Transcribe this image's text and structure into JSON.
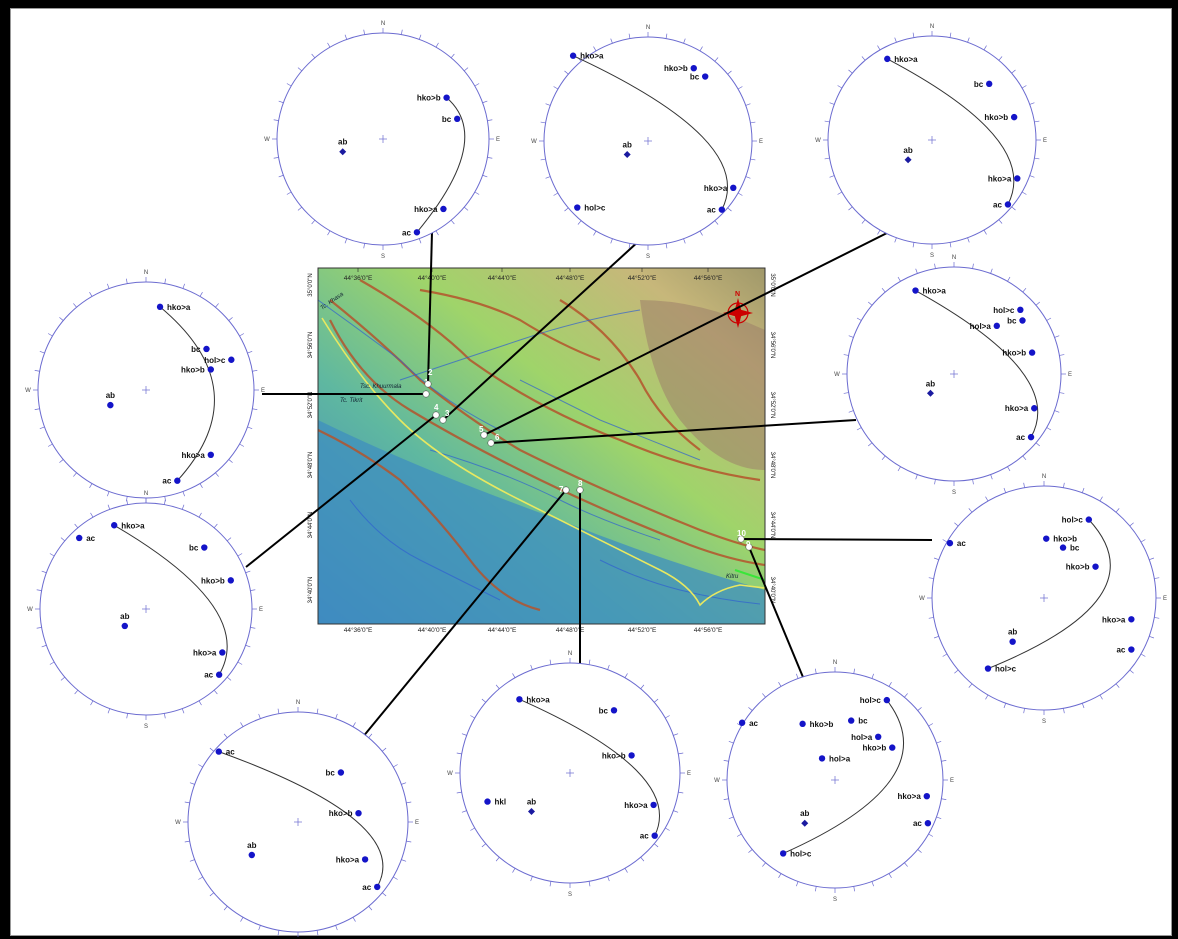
{
  "map": {
    "top_lon_labels": [
      "44°36'0\"E",
      "44°40'0\"E",
      "44°44'0\"E",
      "44°48'0\"E",
      "44°52'0\"E",
      "44°56'0\"E"
    ],
    "bottom_lon_labels": [
      "44°36'0\"E",
      "44°40'0\"E",
      "44°44'0\"E",
      "44°48'0\"E",
      "44°52'0\"E",
      "44°56'0\"E"
    ],
    "left_lat_labels": [
      "35°0'0\"N",
      "34°56'0\"N",
      "34°52'0\"N",
      "34°48'0\"N",
      "34°44'0\"N",
      "34°40'0\"N"
    ],
    "right_lat_labels": [
      "35°0'0\"N",
      "34°56'0\"N",
      "34°52'0\"N",
      "34°48'0\"N",
      "34°44'0\"N",
      "34°40'0\"N"
    ],
    "river_labels": [
      "Tc. Khasa",
      "Tsc. Khuurmala",
      "Tc. Tikrit",
      "Kirkuk",
      "Kitru"
    ],
    "site_labels": [
      "1",
      "2",
      "3",
      "4",
      "5",
      "6",
      "7",
      "8",
      "9",
      "10"
    ],
    "north_arrow_label": "N",
    "colors": {
      "water_low": "#3f7fc4",
      "plain": "#5fb8a0",
      "upland": "#9fd46a",
      "hill": "#c7b77a",
      "contour": "#b4532c",
      "rivers": "#2f5fd0",
      "boundary": "#e8e860",
      "frame_line": "#000000"
    }
  },
  "compass": {
    "N": "N",
    "S": "S",
    "E": "E",
    "W": "W"
  },
  "stereonets": [
    {
      "id": "net-1",
      "points": [
        {
          "label": "ab",
          "type": "diamond"
        },
        {
          "label": "hko>b"
        },
        {
          "label": "bc"
        },
        {
          "label": "hko>a"
        },
        {
          "label": "ac"
        }
      ]
    },
    {
      "id": "net-2",
      "points": [
        {
          "label": "hko>a"
        },
        {
          "label": "hko>b"
        },
        {
          "label": "bc"
        },
        {
          "label": "ab",
          "type": "diamond"
        },
        {
          "label": "hko>a"
        },
        {
          "label": "hol>c"
        },
        {
          "label": "ac"
        }
      ]
    },
    {
      "id": "net-3",
      "points": [
        {
          "label": "hko>a"
        },
        {
          "label": "bc"
        },
        {
          "label": "ab",
          "type": "diamond"
        },
        {
          "label": "hko>b"
        },
        {
          "label": "hko>a"
        },
        {
          "label": "ac"
        }
      ]
    },
    {
      "id": "net-4",
      "points": [
        {
          "label": "hko>a"
        },
        {
          "label": "bc"
        },
        {
          "label": "hol>c"
        },
        {
          "label": "hko>b"
        },
        {
          "label": "ab"
        },
        {
          "label": "hko>a"
        },
        {
          "label": "ac"
        }
      ]
    },
    {
      "id": "net-5",
      "points": [
        {
          "label": "hko>a"
        },
        {
          "label": "hol>c"
        },
        {
          "label": "bc"
        },
        {
          "label": "hol>a"
        },
        {
          "label": "hko>b"
        },
        {
          "label": "ab",
          "type": "diamond"
        },
        {
          "label": "hko>a"
        },
        {
          "label": "ac"
        }
      ]
    },
    {
      "id": "net-6",
      "points": [
        {
          "label": "ac"
        },
        {
          "label": "hko>a"
        },
        {
          "label": "bc"
        },
        {
          "label": "hko>b"
        },
        {
          "label": "ab"
        },
        {
          "label": "hko>a"
        },
        {
          "label": "ac"
        }
      ]
    },
    {
      "id": "net-7",
      "points": [
        {
          "label": "hol>c"
        },
        {
          "label": "ac"
        },
        {
          "label": "hko>b"
        },
        {
          "label": "bc"
        },
        {
          "label": "hko>b"
        },
        {
          "label": "hko>a"
        },
        {
          "label": "ab"
        },
        {
          "label": "hol>c"
        },
        {
          "label": "ac"
        }
      ]
    },
    {
      "id": "net-8",
      "points": [
        {
          "label": "ac"
        },
        {
          "label": "bc"
        },
        {
          "label": "hko>b"
        },
        {
          "label": "ab"
        },
        {
          "label": "hko>a"
        },
        {
          "label": "ac"
        }
      ]
    },
    {
      "id": "net-9",
      "points": [
        {
          "label": "hko>a"
        },
        {
          "label": "bc"
        },
        {
          "label": "hko>b"
        },
        {
          "label": "hkl"
        },
        {
          "label": "ab",
          "type": "diamond"
        },
        {
          "label": "hko>a"
        },
        {
          "label": "ac"
        }
      ]
    },
    {
      "id": "net-10",
      "points": [
        {
          "label": "hol>c"
        },
        {
          "label": "ac"
        },
        {
          "label": "hko>b"
        },
        {
          "label": "bc"
        },
        {
          "label": "hol>a"
        },
        {
          "label": "hko>b"
        },
        {
          "label": "hol>a"
        },
        {
          "label": "hko>a"
        },
        {
          "label": "ab",
          "type": "diamond"
        },
        {
          "label": "ac"
        },
        {
          "label": "hol>c"
        }
      ]
    }
  ]
}
